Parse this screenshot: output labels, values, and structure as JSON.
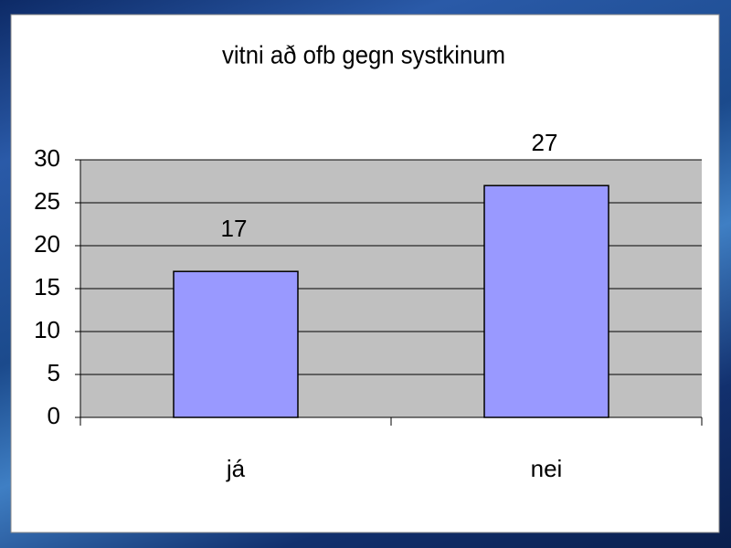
{
  "chart_data": {
    "type": "bar",
    "title": "vitni að ofb gegn systkinum",
    "categories": [
      "já",
      "nei"
    ],
    "values": [
      17,
      27
    ],
    "color": "#9999ff",
    "ylim": [
      0,
      30
    ],
    "yticks": [
      0,
      5,
      10,
      15,
      20,
      25,
      30
    ],
    "grid": true
  }
}
